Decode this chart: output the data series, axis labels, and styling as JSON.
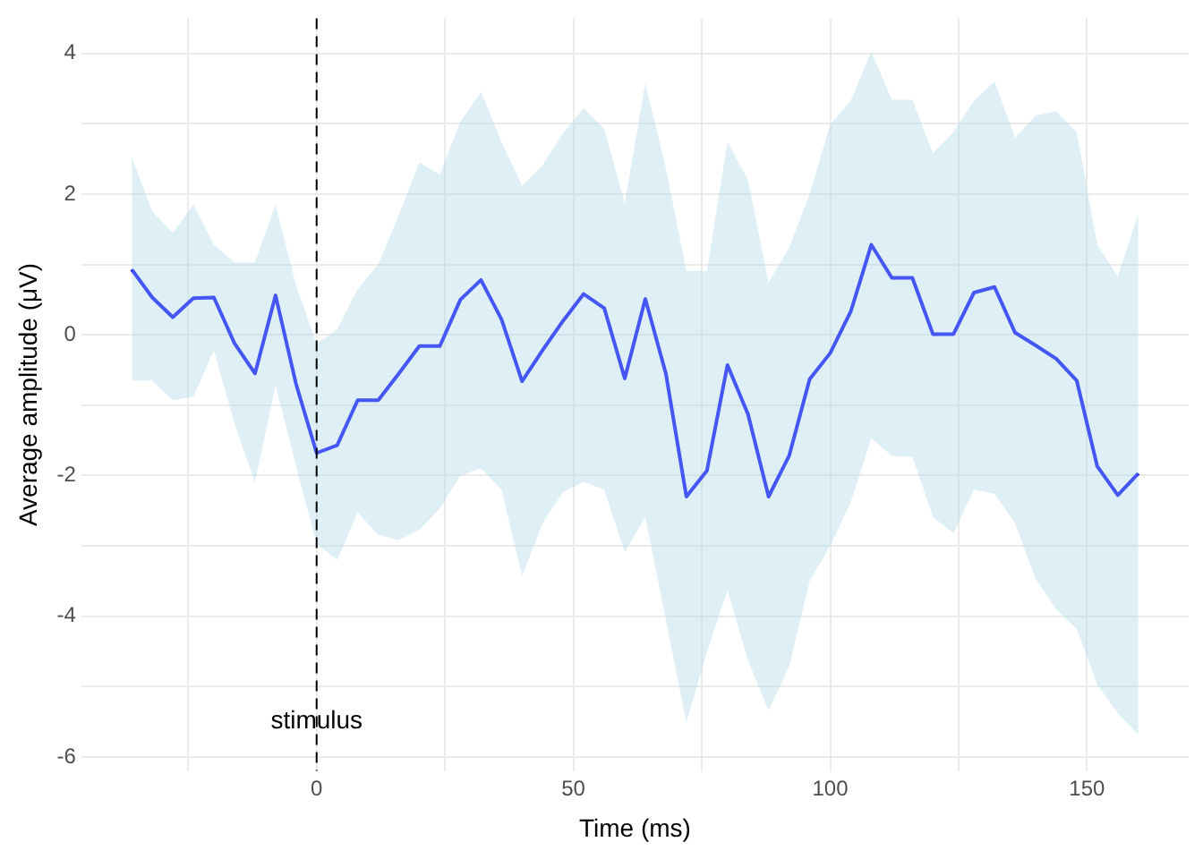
{
  "chart_data": {
    "type": "line",
    "xlabel": "Time (ms)",
    "ylabel": "Average amplitude (μV)",
    "x": [
      -36,
      -32,
      -28,
      -24,
      -20,
      -16,
      -12,
      -8,
      -4,
      0,
      4,
      8,
      12,
      16,
      20,
      24,
      28,
      32,
      36,
      40,
      44,
      48,
      52,
      56,
      60,
      64,
      68,
      72,
      76,
      80,
      84,
      88,
      92,
      96,
      100,
      104,
      108,
      112,
      116,
      120,
      124,
      128,
      132,
      136,
      140,
      144,
      148,
      152,
      156,
      160
    ],
    "series": [
      {
        "color": "#0000ff",
        "values": [
          0.93,
          0.53,
          0.25,
          0.52,
          0.53,
          -0.12,
          -0.55,
          0.56,
          -0.7,
          -1.68,
          -1.57,
          -0.93,
          -0.93,
          -0.55,
          -0.16,
          -0.16,
          0.5,
          0.78,
          0.22,
          -0.66,
          -0.22,
          0.2,
          0.58,
          0.38,
          -0.62,
          0.51,
          -0.55,
          -2.3,
          -1.93,
          -0.43,
          -1.13,
          -2.3,
          -1.72,
          -0.63,
          -0.26,
          0.33,
          1.28,
          0.81,
          0.81,
          0.01,
          0.01,
          0.6,
          0.68,
          0.03,
          -0.15,
          -0.34,
          -0.65,
          -1.87,
          -2.28,
          -1.97
        ],
        "lower": [
          -0.65,
          -0.65,
          -0.93,
          -0.88,
          -0.22,
          -1.26,
          -2.1,
          -0.72,
          -1.87,
          -2.97,
          -3.2,
          -2.53,
          -2.84,
          -2.92,
          -2.77,
          -2.47,
          -2.0,
          -1.9,
          -2.2,
          -3.43,
          -2.68,
          -2.23,
          -2.09,
          -2.2,
          -3.09,
          -2.59,
          -4.05,
          -5.51,
          -4.51,
          -3.63,
          -4.63,
          -5.34,
          -4.72,
          -3.5,
          -3.0,
          -2.38,
          -1.47,
          -1.72,
          -1.73,
          -2.59,
          -2.82,
          -2.2,
          -2.26,
          -2.68,
          -3.47,
          -3.9,
          -4.18,
          -4.97,
          -5.38,
          -5.68
        ],
        "upper": [
          2.53,
          1.75,
          1.45,
          1.85,
          1.28,
          1.03,
          1.03,
          1.85,
          0.7,
          -0.13,
          0.08,
          0.65,
          1.0,
          1.7,
          2.45,
          2.28,
          3.03,
          3.45,
          2.74,
          2.12,
          2.41,
          2.87,
          3.22,
          2.93,
          1.87,
          3.58,
          2.37,
          0.91,
          0.91,
          2.74,
          2.2,
          0.74,
          1.24,
          2.0,
          2.99,
          3.33,
          4.02,
          3.34,
          3.34,
          2.58,
          2.88,
          3.33,
          3.6,
          2.8,
          3.12,
          3.18,
          2.88,
          1.28,
          0.83,
          1.72
        ]
      }
    ],
    "xlim": [
      -45.8,
      169.8
    ],
    "xticks": [
      {
        "value": -25,
        "label": null
      },
      0,
      {
        "value": 25,
        "label": null
      },
      50,
      {
        "value": 75,
        "label": null
      },
      100,
      {
        "value": 125,
        "label": null
      },
      150
    ],
    "ylim": [
      -6.2,
      4.5
    ],
    "yticks": [
      -6,
      {
        "value": -5,
        "label": null
      },
      -4,
      {
        "value": -3,
        "label": null
      },
      -2,
      {
        "value": -1,
        "label": null
      },
      0,
      {
        "value": 1,
        "label": null
      },
      2,
      {
        "value": 3,
        "label": null
      },
      4
    ],
    "grid": true,
    "legend": false,
    "marker": "none",
    "line_style": "solid",
    "ref_lines": [
      {
        "axis": "x",
        "value": 0,
        "color": "#000000",
        "line_style": "dashed"
      }
    ],
    "annotations": [
      {
        "text": "stimulus",
        "x": 0,
        "y": -5.5
      }
    ]
  }
}
